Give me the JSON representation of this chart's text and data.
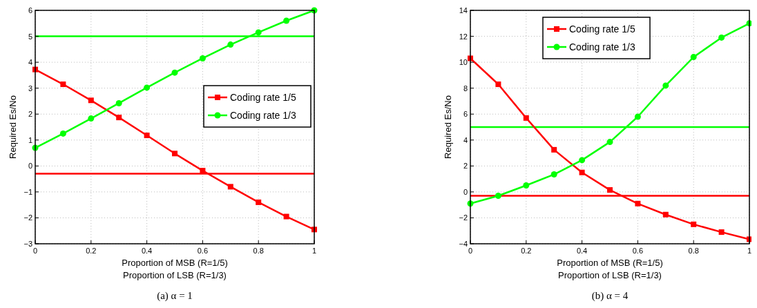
{
  "chart_data": [
    {
      "type": "line",
      "xlabel": "Proportion of MSB (R=1/5)\nProportion of LSB (R=1/3)",
      "ylabel": "Required Es/No",
      "annotations": [
        "(a) α = 1"
      ],
      "x": [
        0,
        0.1,
        0.2,
        0.3,
        0.4,
        0.5,
        0.6,
        0.7,
        0.8,
        0.9,
        1
      ],
      "xlim": [
        0,
        1
      ],
      "xticks": [
        0,
        0.2,
        0.4,
        0.6,
        0.8,
        1
      ],
      "ylim": [
        -3,
        6
      ],
      "yticks": [
        {
          "value": -3,
          "label": "−3"
        },
        {
          "value": -2,
          "label": "−2"
        },
        {
          "value": -1,
          "label": "−1"
        },
        0,
        1,
        2,
        3,
        4,
        5,
        6
      ],
      "grid": true,
      "legend": "right",
      "line_style": "solid",
      "series": [
        {
          "name": "Coding rate 1/5",
          "color": "#ff0000",
          "marker": "square",
          "values": [
            3.72,
            3.15,
            2.53,
            1.87,
            1.18,
            0.48,
            -0.18,
            -0.8,
            -1.4,
            -1.95,
            -2.45
          ]
        },
        {
          "name": "Coding rate 1/3",
          "color": "#00ff00",
          "marker": "circle",
          "values": [
            0.7,
            1.25,
            1.83,
            2.42,
            3.02,
            3.6,
            4.15,
            4.68,
            5.15,
            5.6,
            6.0
          ]
        }
      ],
      "ref_lines": [
        {
          "axis": "y",
          "value": 5,
          "color": "#00ff00"
        },
        {
          "axis": "y",
          "value": -0.3,
          "color": "#ff0000"
        }
      ]
    },
    {
      "type": "line",
      "xlabel": "Proportion of MSB (R=1/5)\nProportion of LSB (R=1/3)",
      "ylabel": "Required Es/No",
      "annotations": [
        "(b) α = 4"
      ],
      "x": [
        0,
        0.1,
        0.2,
        0.3,
        0.4,
        0.5,
        0.6,
        0.7,
        0.8,
        0.9,
        1
      ],
      "xlim": [
        0,
        1
      ],
      "xticks": [
        0,
        0.2,
        0.4,
        0.6,
        0.8,
        1
      ],
      "ylim": [
        -4,
        14
      ],
      "yticks": [
        {
          "value": -4,
          "label": "−4"
        },
        {
          "value": -2,
          "label": "−2"
        },
        0,
        2,
        4,
        6,
        8,
        10,
        12,
        14
      ],
      "grid": true,
      "legend": "top",
      "line_style": "solid",
      "series": [
        {
          "name": "Coding rate 1/5",
          "color": "#ff0000",
          "marker": "square",
          "values": [
            10.3,
            8.3,
            5.7,
            3.25,
            1.5,
            0.15,
            -0.9,
            -1.75,
            -2.5,
            -3.1,
            -3.65
          ]
        },
        {
          "name": "Coding rate 1/3",
          "color": "#00ff00",
          "marker": "circle",
          "values": [
            -0.9,
            -0.3,
            0.5,
            1.35,
            2.45,
            3.85,
            5.8,
            8.2,
            10.4,
            11.9,
            13.0
          ]
        }
      ],
      "ref_lines": [
        {
          "axis": "y",
          "value": 5,
          "color": "#00ff00"
        },
        {
          "axis": "y",
          "value": -0.3,
          "color": "#ff0000"
        }
      ]
    }
  ]
}
